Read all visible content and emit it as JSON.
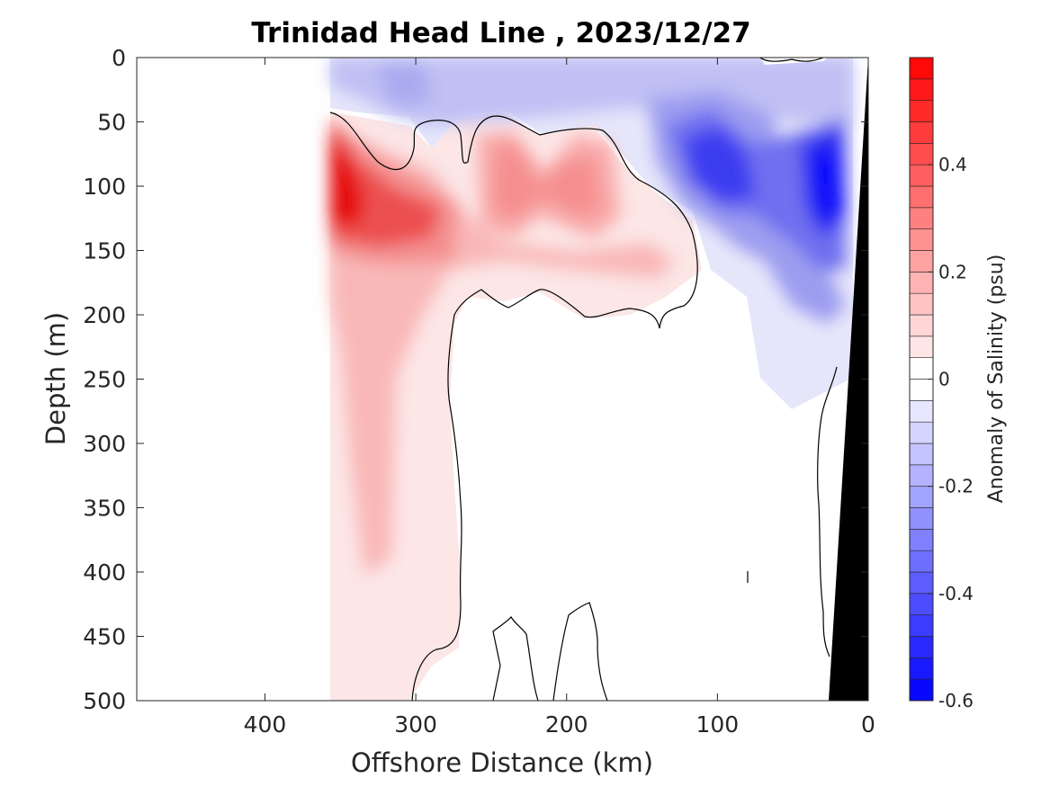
{
  "chart_data": {
    "type": "heatmap",
    "title": "Trinidad Head Line , 2023/12/27",
    "xlabel": "Offshore Distance (km)",
    "ylabel": "Depth (m)",
    "xlim": [
      485,
      0
    ],
    "ylim": [
      0,
      500
    ],
    "x_ticks": [
      400,
      300,
      200,
      100,
      0
    ],
    "y_ticks": [
      0,
      50,
      100,
      150,
      200,
      250,
      300,
      350,
      400,
      450,
      500
    ],
    "colorbar": {
      "label": "Anomaly of Salinity (psu)",
      "range": [
        -0.6,
        0.6
      ],
      "ticks": [
        0.4,
        0.2,
        0,
        -0.2,
        -0.4,
        -0.6
      ],
      "tick_labels": [
        "0.4",
        "0.2",
        "0",
        "-0.2",
        "-0.4",
        "-0.6"
      ],
      "levels": 30,
      "colormap": "blue-white-red",
      "positive_color": "#ff0000",
      "negative_color": "#0000ff"
    },
    "data_extent_km": [
      360,
      8
    ],
    "features": [
      {
        "kind": "max",
        "x": 355,
        "y": 105,
        "value": 0.55
      },
      {
        "kind": "max",
        "x": 240,
        "y": 105,
        "value": 0.25
      },
      {
        "kind": "max",
        "x": 195,
        "y": 105,
        "value": 0.25
      },
      {
        "kind": "min",
        "x": 90,
        "y": 90,
        "value": -0.45
      },
      {
        "kind": "min",
        "x": 30,
        "y": 100,
        "value": -0.55
      },
      {
        "kind": "tongue",
        "x": 330,
        "y": 330,
        "value": 0.1
      }
    ],
    "bathymetry_color": "#000000"
  }
}
